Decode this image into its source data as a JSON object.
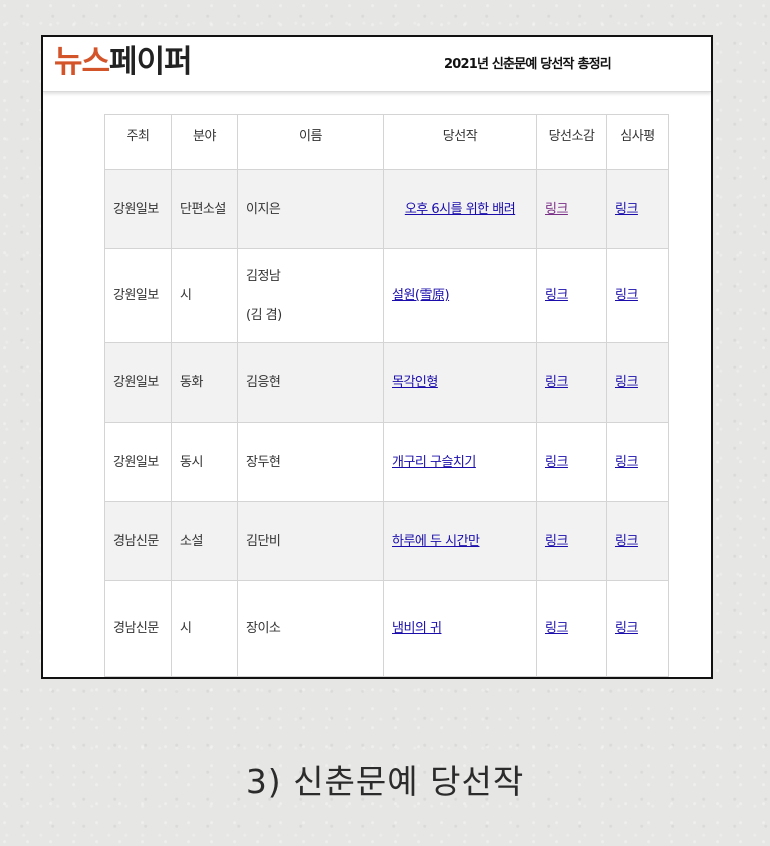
{
  "header": {
    "logo_part1": "뉴스",
    "logo_part2": "페이퍼",
    "title": "2021년 신춘문예 당선작 총정리"
  },
  "table": {
    "columns": [
      "주최",
      "분야",
      "이름",
      "당선작",
      "당선소감",
      "심사평"
    ],
    "rows": [
      {
        "host": "강원일보",
        "category": "단편소설",
        "name": "이지은",
        "name_sub": "",
        "work": "오후 6시를 위한 배려",
        "speech": "링크",
        "review": "링크"
      },
      {
        "host": "강원일보",
        "category": "시",
        "name": "김정남",
        "name_sub": "(김 겸)",
        "work": "설원(雪原)",
        "speech": "링크",
        "review": "링크"
      },
      {
        "host": "강원일보",
        "category": "동화",
        "name": "김응현",
        "name_sub": "",
        "work": "목각인형",
        "speech": "링크",
        "review": "링크"
      },
      {
        "host": "강원일보",
        "category": "동시",
        "name": "장두현",
        "name_sub": "",
        "work": "개구리 구슬치기",
        "speech": "링크",
        "review": "링크"
      },
      {
        "host": "경남신문",
        "category": "소설",
        "name": "김단비",
        "name_sub": "",
        "work": "하루에 두 시간만",
        "speech": "링크",
        "review": "링크"
      },
      {
        "host": "경남신문",
        "category": "시",
        "name": "장이소",
        "name_sub": "",
        "work": "냄비의 귀",
        "speech": "링크",
        "review": "링크"
      }
    ]
  },
  "caption": "3) 신춘문예 당선작",
  "colors": {
    "logo_accent": "#d4542a",
    "link": "#1a0dab",
    "visited_link": "#7a2f86",
    "row_shade": "#f2f2f2"
  }
}
